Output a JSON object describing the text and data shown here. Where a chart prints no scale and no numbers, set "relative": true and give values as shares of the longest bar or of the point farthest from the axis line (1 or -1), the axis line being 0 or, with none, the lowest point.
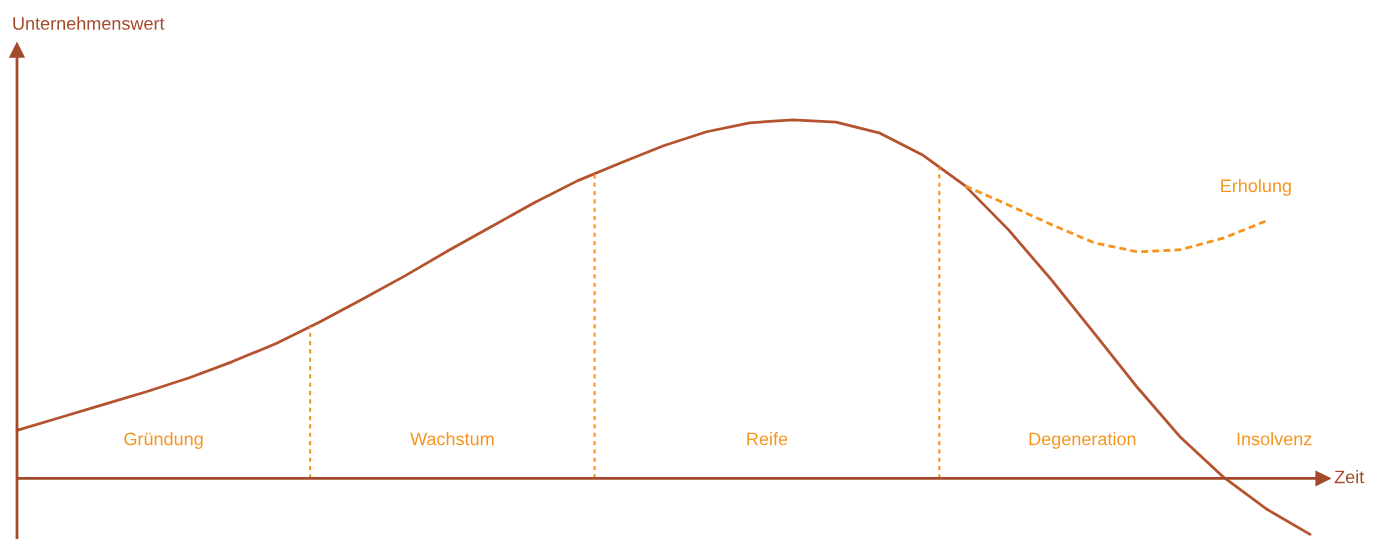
{
  "chart_data": {
    "type": "line",
    "relative": true,
    "xlabel": "Zeit",
    "ylabel": "Unternehmenswert",
    "categories": [
      null,
      null,
      null,
      null,
      null,
      null,
      null,
      null,
      null,
      null,
      null,
      null,
      null,
      null,
      null,
      null,
      null,
      null,
      null,
      null,
      null,
      null,
      null,
      null,
      null,
      null,
      null,
      null,
      null,
      null,
      null
    ],
    "series": [
      {
        "color": "#b5532f",
        "line_style": "solid",
        "values": [
          0.134,
          0.17,
          0.206,
          0.242,
          0.281,
          0.326,
          0.376,
          0.435,
          0.499,
          0.565,
          0.635,
          0.702,
          0.769,
          0.83,
          0.88,
          0.928,
          0.967,
          0.992,
          1.0,
          0.994,
          0.964,
          0.903,
          0.816,
          0.694,
          0.554,
          0.404,
          0.253,
          0.114,
          0.003,
          -0.086,
          -0.156
        ]
      },
      {
        "name": "Erholung",
        "color": "#f7941d",
        "line_style": "dashed",
        "values": [
          null,
          null,
          null,
          null,
          null,
          null,
          null,
          null,
          null,
          null,
          null,
          null,
          null,
          null,
          null,
          null,
          null,
          null,
          null,
          null,
          null,
          null,
          0.816,
          0.763,
          0.708,
          0.657,
          0.632,
          0.638,
          0.671,
          0.719,
          null
        ]
      }
    ],
    "ref_lines": [
      {
        "axis": "y",
        "value": 0,
        "color": "#a34a2a",
        "line_style": "solid"
      }
    ],
    "annotations": [
      "Gründung",
      "Wachstum",
      "Reife",
      "Degeneration",
      "Insolvenz"
    ]
  }
}
